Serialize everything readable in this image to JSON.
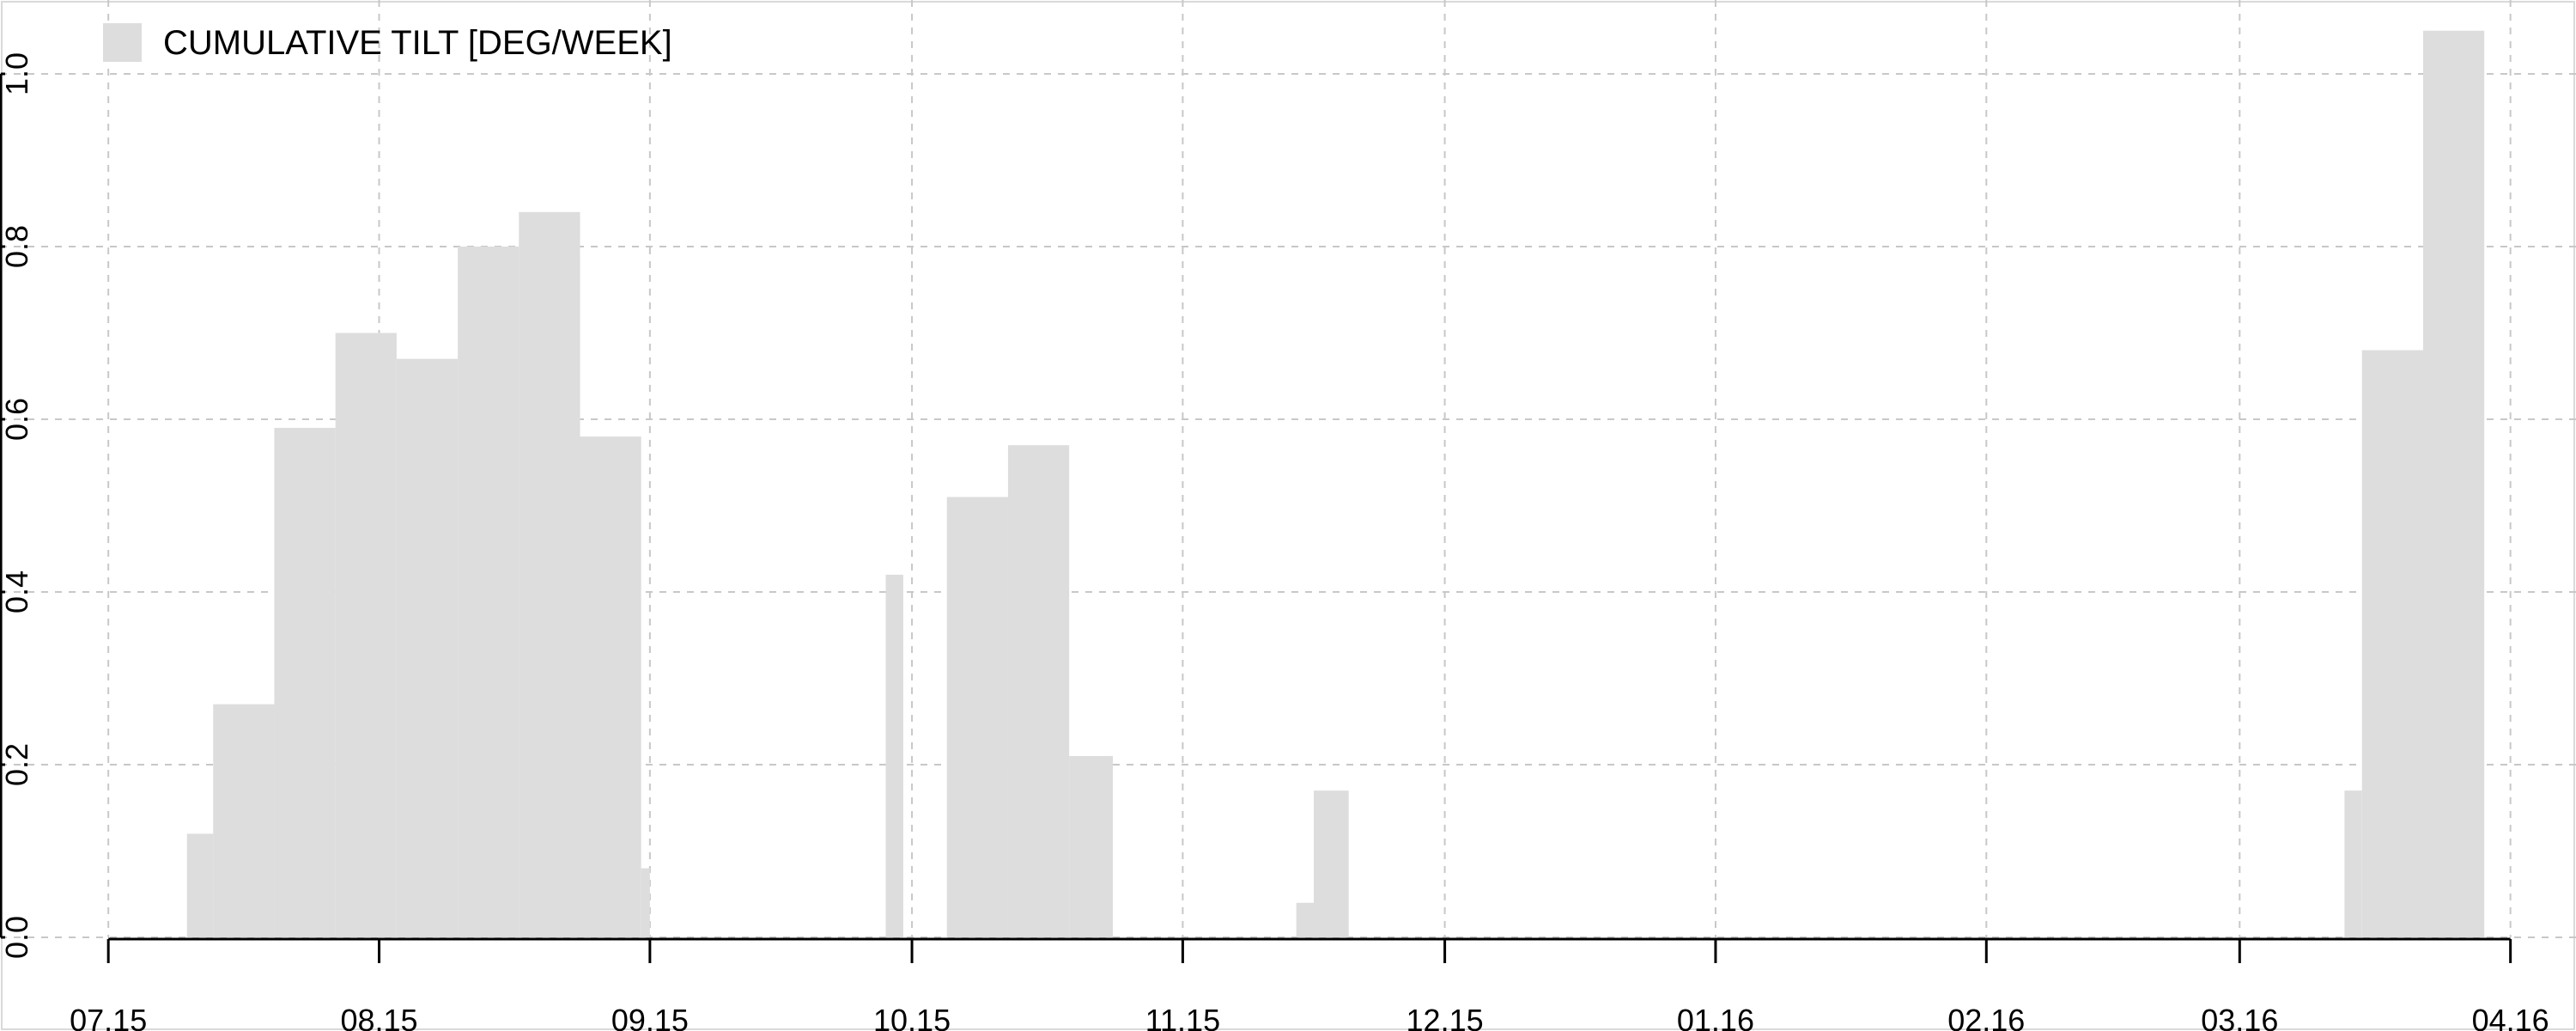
{
  "chart_data": {
    "type": "bar",
    "title": "",
    "xlabel": "",
    "ylabel": "",
    "legend": {
      "label": "CUMULATIVE TILT [DEG/WEEK]",
      "position": "top-left"
    },
    "bar_color": "#dddddd",
    "grid": true,
    "x_domain": [
      "2015-07-14",
      "2016-04-17"
    ],
    "ylim": [
      0,
      1.0
    ],
    "y_ticks": [
      {
        "value": 0.0,
        "label": "0.0"
      },
      {
        "value": 0.2,
        "label": "0.2"
      },
      {
        "value": 0.4,
        "label": "0.4"
      },
      {
        "value": 0.6,
        "label": "0.6"
      },
      {
        "value": 0.8,
        "label": "0.8"
      },
      {
        "value": 1.0,
        "label": "1.0"
      }
    ],
    "x_ticks": [
      {
        "date": "2015-07-15",
        "label": "07.15"
      },
      {
        "date": "2015-08-15",
        "label": "08.15"
      },
      {
        "date": "2015-09-15",
        "label": "09.15"
      },
      {
        "date": "2015-10-15",
        "label": "10.15"
      },
      {
        "date": "2015-11-15",
        "label": "11.15"
      },
      {
        "date": "2015-12-15",
        "label": "12.15"
      },
      {
        "date": "2016-01-15",
        "label": "01.16"
      },
      {
        "date": "2016-02-15",
        "label": "02.16"
      },
      {
        "date": "2016-03-15",
        "label": "03.16"
      },
      {
        "date": "2016-04-15",
        "label": "04.16"
      }
    ],
    "bars": [
      {
        "start": "2015-07-24",
        "end": "2015-07-27",
        "value": 0.12
      },
      {
        "start": "2015-07-27",
        "end": "2015-08-03",
        "value": 0.27
      },
      {
        "start": "2015-08-03",
        "end": "2015-08-10",
        "value": 0.59
      },
      {
        "start": "2015-08-10",
        "end": "2015-08-17",
        "value": 0.7
      },
      {
        "start": "2015-08-17",
        "end": "2015-08-24",
        "value": 0.67
      },
      {
        "start": "2015-08-24",
        "end": "2015-08-31",
        "value": 0.8
      },
      {
        "start": "2015-08-31",
        "end": "2015-09-07",
        "value": 0.84
      },
      {
        "start": "2015-09-07",
        "end": "2015-09-14",
        "value": 0.58
      },
      {
        "start": "2015-09-14",
        "end": "2015-09-15",
        "value": 0.08
      },
      {
        "start": "2015-10-12",
        "end": "2015-10-14",
        "value": 0.42
      },
      {
        "start": "2015-10-19",
        "end": "2015-10-26",
        "value": 0.51
      },
      {
        "start": "2015-10-26",
        "end": "2015-11-02",
        "value": 0.57
      },
      {
        "start": "2015-11-02",
        "end": "2015-11-07",
        "value": 0.21
      },
      {
        "start": "2015-11-28",
        "end": "2015-11-30",
        "value": 0.04
      },
      {
        "start": "2015-11-30",
        "end": "2015-12-04",
        "value": 0.17
      },
      {
        "start": "2016-03-27",
        "end": "2016-03-29",
        "value": 0.17
      },
      {
        "start": "2016-03-29",
        "end": "2016-04-05",
        "value": 0.68
      },
      {
        "start": "2016-04-05",
        "end": "2016-04-12",
        "value": 1.05
      }
    ]
  }
}
